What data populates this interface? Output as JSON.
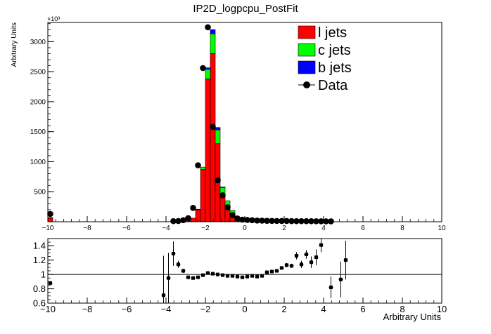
{
  "chart_data": [
    {
      "type": "bar",
      "stacked": true,
      "title": "IP2D_logpcpu_PostFit",
      "ylabel": "Arbitrary Units",
      "y_multiplier_label": "×10³",
      "xlim": [
        -10,
        10
      ],
      "ylim": [
        0,
        3320
      ],
      "bin_width": 0.25,
      "x_ticks": [
        -10,
        -8,
        -6,
        -4,
        -2,
        0,
        2,
        4,
        6,
        8,
        10
      ],
      "y_ticks": [
        500,
        1000,
        1500,
        2000,
        2500,
        3000
      ],
      "legend_position": "top-right",
      "series": [
        {
          "name": "l jets",
          "color": "#ff0000",
          "points": [
            [
              -10,
              60
            ],
            [
              -3.5,
              8
            ],
            [
              -3.25,
              12
            ],
            [
              -3.0,
              25
            ],
            [
              -2.75,
              60
            ],
            [
              -2.5,
              200
            ],
            [
              -2.25,
              870
            ],
            [
              -2.0,
              2380
            ],
            [
              -1.75,
              2800
            ],
            [
              -1.5,
              1300
            ],
            [
              -1.25,
              450
            ],
            [
              -1.0,
              210
            ],
            [
              -0.75,
              90
            ],
            [
              -0.5,
              35
            ],
            [
              -0.25,
              15
            ],
            [
              0.0,
              10
            ]
          ]
        },
        {
          "name": "c jets",
          "color": "#00ff00",
          "points": [
            [
              -10,
              12
            ],
            [
              -2.5,
              8
            ],
            [
              -2.25,
              40
            ],
            [
              -2.0,
              160
            ],
            [
              -1.75,
              330
            ],
            [
              -1.5,
              230
            ],
            [
              -1.25,
              120
            ],
            [
              -1.0,
              140
            ],
            [
              -0.75,
              100
            ],
            [
              -0.5,
              40
            ],
            [
              -0.25,
              15
            ],
            [
              0.0,
              10
            ]
          ]
        },
        {
          "name": "b jets",
          "color": "#0000ff",
          "points": [
            [
              -2.0,
              25
            ],
            [
              -1.75,
              70
            ],
            [
              -1.5,
              40
            ],
            [
              -1.25,
              10
            ]
          ]
        }
      ],
      "data": {
        "name": "Data",
        "points": [
          [
            -9.875,
            130
          ],
          [
            -3.625,
            10
          ],
          [
            -3.375,
            12
          ],
          [
            -3.125,
            25
          ],
          [
            -2.875,
            60
          ],
          [
            -2.625,
            230
          ],
          [
            -2.375,
            940
          ],
          [
            -2.125,
            2560
          ],
          [
            -1.875,
            3240
          ],
          [
            -1.625,
            1580
          ],
          [
            -1.375,
            690
          ],
          [
            -1.125,
            440
          ],
          [
            -0.875,
            240
          ],
          [
            -0.625,
            110
          ],
          [
            -0.375,
            55
          ],
          [
            -0.125,
            35
          ],
          [
            0.125,
            30
          ],
          [
            0.375,
            25
          ],
          [
            0.625,
            20
          ],
          [
            0.875,
            18
          ],
          [
            1.125,
            15
          ],
          [
            1.375,
            14
          ],
          [
            1.625,
            13
          ],
          [
            1.875,
            12
          ],
          [
            2.125,
            12
          ],
          [
            2.375,
            11
          ],
          [
            2.625,
            10
          ],
          [
            2.875,
            10
          ],
          [
            3.125,
            9
          ],
          [
            3.375,
            9
          ],
          [
            3.625,
            8
          ],
          [
            3.875,
            8
          ],
          [
            4.125,
            7
          ],
          [
            4.375,
            7
          ]
        ]
      }
    },
    {
      "type": "scatter",
      "ylabel": "",
      "xlabel": "Arbitrary Units",
      "xlim": [
        -10,
        10
      ],
      "ylim": [
        0.6,
        1.5
      ],
      "x_ticks": [
        -10,
        -8,
        -6,
        -4,
        -2,
        0,
        2,
        4,
        6,
        8,
        10
      ],
      "y_ticks": [
        0.6,
        0.8,
        1,
        1.2,
        1.4
      ],
      "reference_line": 1,
      "points": [
        {
          "x": -9.875,
          "y": 0.88,
          "err": 0.02
        },
        {
          "x": -4.125,
          "y": 0.71,
          "err": 0.55
        },
        {
          "x": -3.875,
          "y": 0.95,
          "err": 0.35
        },
        {
          "x": -3.625,
          "y": 1.29,
          "err": 0.17
        },
        {
          "x": -3.375,
          "y": 1.14,
          "err": 0.05
        },
        {
          "x": -3.125,
          "y": 1.05,
          "err": 0.03
        },
        {
          "x": -2.875,
          "y": 0.96,
          "err": 0.02
        },
        {
          "x": -2.625,
          "y": 0.95,
          "err": 0.02
        },
        {
          "x": -2.375,
          "y": 0.96,
          "err": 0.015
        },
        {
          "x": -2.125,
          "y": 0.99,
          "err": 0.01
        },
        {
          "x": -1.875,
          "y": 1.02,
          "err": 0.01
        },
        {
          "x": -1.625,
          "y": 1.01,
          "err": 0.01
        },
        {
          "x": -1.375,
          "y": 1.0,
          "err": 0.01
        },
        {
          "x": -1.125,
          "y": 0.99,
          "err": 0.01
        },
        {
          "x": -0.875,
          "y": 0.98,
          "err": 0.01
        },
        {
          "x": -0.625,
          "y": 0.98,
          "err": 0.01
        },
        {
          "x": -0.375,
          "y": 0.97,
          "err": 0.01
        },
        {
          "x": -0.125,
          "y": 0.96,
          "err": 0.01
        },
        {
          "x": 0.125,
          "y": 0.97,
          "err": 0.01
        },
        {
          "x": 0.375,
          "y": 0.98,
          "err": 0.01
        },
        {
          "x": 0.625,
          "y": 0.97,
          "err": 0.01
        },
        {
          "x": 0.875,
          "y": 0.98,
          "err": 0.01
        },
        {
          "x": 1.125,
          "y": 1.03,
          "err": 0.015
        },
        {
          "x": 1.375,
          "y": 1.04,
          "err": 0.015
        },
        {
          "x": 1.625,
          "y": 1.05,
          "err": 0.02
        },
        {
          "x": 1.875,
          "y": 1.09,
          "err": 0.02
        },
        {
          "x": 2.125,
          "y": 1.13,
          "err": 0.03
        },
        {
          "x": 2.375,
          "y": 1.12,
          "err": 0.03
        },
        {
          "x": 2.625,
          "y": 1.26,
          "err": 0.05
        },
        {
          "x": 2.875,
          "y": 1.14,
          "err": 0.05
        },
        {
          "x": 3.125,
          "y": 1.28,
          "err": 0.06
        },
        {
          "x": 3.375,
          "y": 1.17,
          "err": 0.08
        },
        {
          "x": 3.625,
          "y": 1.24,
          "err": 0.11
        },
        {
          "x": 3.875,
          "y": 1.41,
          "err": 0.1
        },
        {
          "x": 4.375,
          "y": 0.82,
          "err": 0.15
        },
        {
          "x": 4.875,
          "y": 0.93,
          "err": 0.25
        },
        {
          "x": 5.125,
          "y": 1.2,
          "err": 0.27
        }
      ]
    }
  ]
}
